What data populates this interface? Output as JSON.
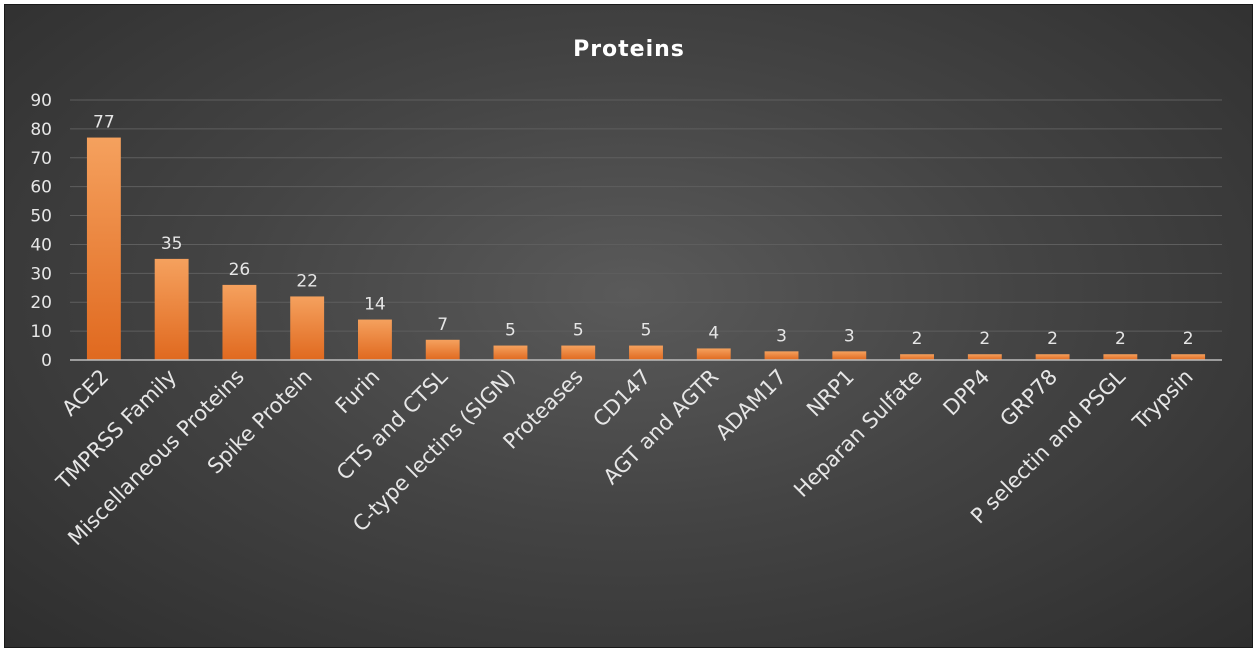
{
  "chart_data": {
    "type": "bar",
    "title": "Proteins",
    "xlabel": "",
    "ylabel": "",
    "ylim": [
      0,
      90
    ],
    "yticks": [
      0,
      10,
      20,
      30,
      40,
      50,
      60,
      70,
      80,
      90
    ],
    "grid": true,
    "legend": "none",
    "categories": [
      "ACE2",
      "TMPRSS Family",
      "Miscellaneous Proteins",
      "Spike Protein",
      "Furin",
      "CTS and CTSL",
      "C-type lectins (SIGN)",
      "Proteases",
      "CD147",
      "AGT and AGTR",
      "ADAM17",
      "NRP1",
      "Heparan Sulfate",
      "DPP4",
      "GRP78",
      "P selectin and PSGL",
      "Trypsin"
    ],
    "values": [
      77,
      35,
      26,
      22,
      14,
      7,
      5,
      5,
      5,
      4,
      3,
      3,
      2,
      2,
      2,
      2,
      2
    ],
    "data_labels": true,
    "colors": {
      "bar_top": "#f5a15e",
      "bar_bottom": "#e0691f",
      "background": "#444444"
    }
  }
}
